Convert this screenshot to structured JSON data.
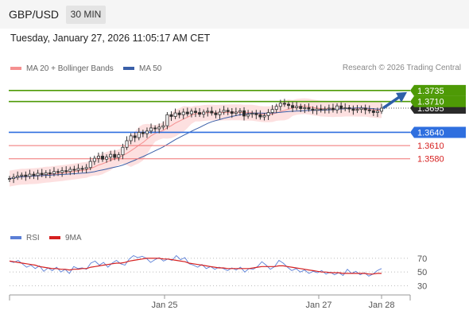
{
  "header": {
    "pair": "GBP/USD",
    "timeframe": "30 MIN"
  },
  "timestamp": "Tuesday, January 27, 2026 11:05:17 AM CET",
  "price_legend": [
    {
      "label": "MA 20 + Bollinger Bands",
      "color": "#f59090"
    },
    {
      "label": "MA 50",
      "color": "#3a5fa8"
    }
  ],
  "credit": "Research © 2026 Trading Central",
  "rsi_legend": [
    {
      "label": "RSI",
      "color": "#5b7fd6"
    },
    {
      "label": "9MA",
      "color": "#d62020"
    }
  ],
  "colors": {
    "resistance": "#4e9a06",
    "pivot": "#2f6fdf",
    "support": "#f07070",
    "candle_up": "#2a2a2a",
    "bb_fill": "#fde0e0",
    "arrow": "#2e5fa8"
  },
  "chart_data": [
    {
      "type": "candlestick",
      "title": "GBP/USD 30 MIN",
      "ylim": [
        1.3435,
        1.376
      ],
      "x_ticks": [
        "Jan 25",
        "Jan 27",
        "Jan 28"
      ],
      "levels": [
        {
          "value": 1.3735,
          "label": "1.3735",
          "kind": "resistance"
        },
        {
          "value": 1.371,
          "label": "1.3710",
          "kind": "resistance"
        },
        {
          "value": 1.364,
          "label": "1.3640",
          "kind": "pivot"
        },
        {
          "value": 1.361,
          "label": "1.3610",
          "kind": "support"
        },
        {
          "value": 1.358,
          "label": "1.3580",
          "kind": "support"
        }
      ],
      "last_price": {
        "value": 1.3695,
        "label": "1.3695"
      },
      "forecast_target": 1.3735,
      "close_series": [
        1.3535,
        1.3538,
        1.3541,
        1.3543,
        1.354,
        1.3545,
        1.3542,
        1.3547,
        1.3544,
        1.3548,
        1.3546,
        1.3551,
        1.3549,
        1.3553,
        1.3551,
        1.3556,
        1.3554,
        1.3558,
        1.3557,
        1.356,
        1.3574,
        1.3581,
        1.3586,
        1.3579,
        1.3584,
        1.359,
        1.3583,
        1.3589,
        1.3606,
        1.3621,
        1.3632,
        1.3628,
        1.364,
        1.3637,
        1.3643,
        1.365,
        1.3648,
        1.3652,
        1.3655,
        1.368,
        1.3676,
        1.3684,
        1.368,
        1.3686,
        1.3682,
        1.3688,
        1.3685,
        1.3681,
        1.3686,
        1.3688,
        1.3684,
        1.368,
        1.3686,
        1.369,
        1.3687,
        1.3683,
        1.3686,
        1.3689,
        1.3677,
        1.3681,
        1.3683,
        1.368,
        1.3675,
        1.3678,
        1.3685,
        1.3692,
        1.3699,
        1.3706,
        1.3704,
        1.3701,
        1.3696,
        1.3699,
        1.3694,
        1.3696,
        1.3693,
        1.369,
        1.3693,
        1.3691,
        1.3693,
        1.3695,
        1.3691,
        1.37,
        1.3694,
        1.3696,
        1.3693,
        1.369,
        1.3692,
        1.3695,
        1.3691,
        1.3689,
        1.3685,
        1.3688,
        1.3695
      ]
    },
    {
      "type": "line",
      "title": "RSI",
      "ylim": [
        20,
        85
      ],
      "y_ticks": [
        70,
        50,
        30
      ],
      "series": [
        {
          "name": "RSI",
          "values": [
            66,
            64,
            67,
            62,
            57,
            60,
            55,
            59,
            51,
            56,
            52,
            57,
            50,
            54,
            48,
            58,
            55,
            56,
            54,
            63,
            66,
            60,
            64,
            57,
            63,
            67,
            62,
            60,
            69,
            74,
            71,
            73,
            70,
            64,
            68,
            71,
            66,
            69,
            67,
            74,
            68,
            71,
            62,
            60,
            57,
            61,
            55,
            58,
            54,
            57,
            55,
            52,
            56,
            53,
            57,
            50,
            55,
            54,
            58,
            65,
            60,
            54,
            58,
            67,
            63,
            57,
            52,
            55,
            50,
            53,
            48,
            51,
            49,
            52,
            47,
            50,
            46,
            49,
            45,
            54,
            48,
            51,
            46,
            49,
            44,
            47,
            52,
            55
          ]
        },
        {
          "name": "9MA",
          "values": [
            66,
            65,
            64,
            63,
            62,
            61,
            60,
            58,
            57,
            56,
            55,
            55,
            54,
            54,
            53,
            54,
            54,
            55,
            55,
            57,
            58,
            59,
            60,
            61,
            62,
            63,
            63,
            64,
            66,
            67,
            68,
            69,
            70,
            70,
            70,
            70,
            69,
            69,
            68,
            67,
            66,
            65,
            63,
            62,
            61,
            60,
            59,
            58,
            57,
            56,
            56,
            55,
            55,
            55,
            55,
            55,
            55,
            56,
            57,
            58,
            58,
            58,
            58,
            59,
            59,
            58,
            57,
            56,
            55,
            54,
            53,
            52,
            51,
            50,
            50,
            49,
            49,
            49,
            48,
            48,
            48,
            48,
            48,
            48,
            47,
            47,
            48,
            48
          ]
        }
      ]
    }
  ]
}
